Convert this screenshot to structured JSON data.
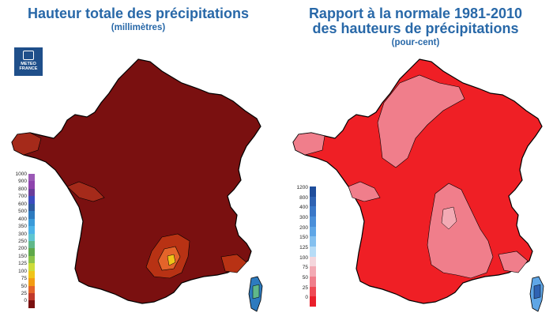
{
  "left_map": {
    "title": "Hauteur totale des précipitations",
    "subtitle": "(millimètres)",
    "logo_line1": "METEO",
    "logo_line2": "FRANCE",
    "legend_labels": [
      "1000",
      "900",
      "800",
      "700",
      "600",
      "500",
      "400",
      "350",
      "300",
      "250",
      "200",
      "150",
      "125",
      "100",
      "75",
      "50",
      "25",
      "0"
    ],
    "legend_colors": [
      "#9b59b6",
      "#8e44ad",
      "#6a3d9a",
      "#3b4cc0",
      "#2c5aa0",
      "#2d7bbf",
      "#3a9ad9",
      "#4cb3e8",
      "#5fc6d1",
      "#60b88a",
      "#5fa84a",
      "#8bc34a",
      "#cddc39",
      "#f0c419",
      "#f39c12",
      "#e4642a",
      "#c0392b",
      "#7a1010"
    ],
    "dominant_color": "#7a1010"
  },
  "right_map": {
    "title_line1": "Rapport à la normale 1981-2010",
    "title_line2": "des hauteurs de précipitations",
    "subtitle": "(pour-cent)",
    "legend_labels": [
      "1200",
      "800",
      "400",
      "300",
      "200",
      "150",
      "125",
      "100",
      "75",
      "50",
      "25",
      "0"
    ],
    "legend_colors": [
      "#1f4e9c",
      "#2f63b3",
      "#3a78c8",
      "#4a8fd9",
      "#5fa6e6",
      "#84c0ef",
      "#b7dcf6",
      "#f4d6dc",
      "#f3aab4",
      "#f07e8b",
      "#ef4a55",
      "#ea1f2b"
    ],
    "dominant_color": "#ef1f25"
  }
}
